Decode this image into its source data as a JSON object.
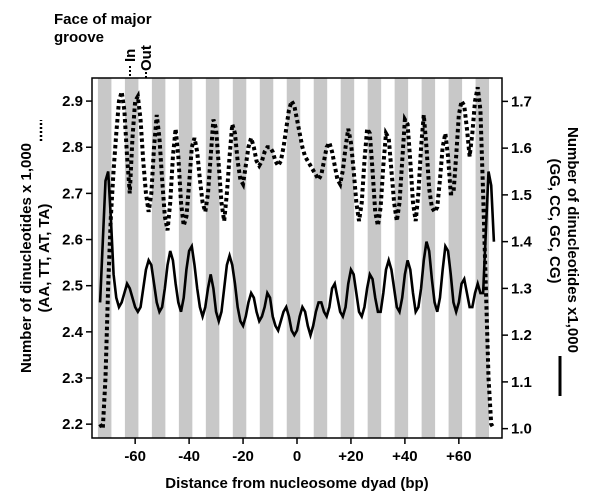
{
  "chart_data": {
    "type": "line",
    "title": "",
    "xlabel": "Distance from nucleosome dyad (bp)",
    "ylabel_left": [
      "Number of dinucleotides x 1,000",
      "(AA, TT, AT, TA)"
    ],
    "ylabel_right": [
      "Number of dinucleotides x1,000",
      "(GG, CC, GC, CG)"
    ],
    "xlim": [
      -76,
      76
    ],
    "ylim_left": [
      2.17,
      2.95
    ],
    "ylim_right": [
      0.98,
      1.75
    ],
    "x_ticks": [
      -60,
      -40,
      -20,
      0,
      20,
      40,
      60
    ],
    "x_tick_labels": [
      "-60",
      "-40",
      "-20",
      "0",
      "+20",
      "+40",
      "+60"
    ],
    "y_left_ticks": [
      2.2,
      2.3,
      2.4,
      2.5,
      2.6,
      2.7,
      2.8,
      2.9
    ],
    "y_left_tick_labels": [
      "2.2",
      "2.3",
      "2.4",
      "2.5",
      "2.6",
      "2.7",
      "2.8",
      "2.9"
    ],
    "y_right_ticks": [
      1.0,
      1.1,
      1.2,
      1.3,
      1.4,
      1.5,
      1.6,
      1.7
    ],
    "y_right_tick_labels": [
      "1.0",
      "1.1",
      "1.2",
      "1.3",
      "1.4",
      "1.5",
      "1.6",
      "1.7"
    ],
    "groove_annotation": {
      "title_lines": [
        "Face of major",
        "groove"
      ],
      "in_label": "In",
      "out_label": "Out"
    },
    "groove_bands": {
      "period_bp": 10.0,
      "band_width_bp": 5.0,
      "first_band_start": -73.8,
      "color": "#c8c8c8"
    },
    "series": [
      {
        "axis": "left",
        "style": "dotted",
        "color": "#000000",
        "x": [
          -73,
          -72,
          -71,
          -70,
          -69,
          -68,
          -67,
          -66,
          -65,
          -64,
          -63,
          -62,
          -61,
          -60,
          -59,
          -58,
          -57,
          -56,
          -55,
          -54,
          -53,
          -52,
          -51,
          -50,
          -49,
          -48,
          -47,
          -46,
          -45,
          -44,
          -43,
          -42,
          -41,
          -40,
          -39,
          -38,
          -37,
          -36,
          -35,
          -34,
          -33,
          -32,
          -31,
          -30,
          -29,
          -28,
          -27,
          -26,
          -25,
          -24,
          -23,
          -22,
          -21,
          -20,
          -19,
          -18,
          -17,
          -16,
          -15,
          -14,
          -13,
          -12,
          -11,
          -10,
          -9,
          -8,
          -7,
          -6,
          -5,
          -4,
          -3,
          -2,
          -1,
          0,
          1,
          2,
          3,
          4,
          5,
          6,
          7,
          8,
          9,
          10,
          11,
          12,
          13,
          14,
          15,
          16,
          17,
          18,
          19,
          20,
          21,
          22,
          23,
          24,
          25,
          26,
          27,
          28,
          29,
          30,
          31,
          32,
          33,
          34,
          35,
          36,
          37,
          38,
          39,
          40,
          41,
          42,
          43,
          44,
          45,
          46,
          47,
          48,
          49,
          50,
          51,
          52,
          53,
          54,
          55,
          56,
          57,
          58,
          59,
          60,
          61,
          62,
          63,
          64,
          65,
          66,
          67,
          68,
          69,
          70,
          71,
          72,
          73
        ],
        "y": [
          2.2,
          2.19,
          2.3,
          2.5,
          2.65,
          2.75,
          2.83,
          2.9,
          2.92,
          2.88,
          2.78,
          2.7,
          2.82,
          2.9,
          2.91,
          2.86,
          2.77,
          2.7,
          2.66,
          2.7,
          2.8,
          2.87,
          2.82,
          2.73,
          2.65,
          2.62,
          2.68,
          2.78,
          2.84,
          2.78,
          2.68,
          2.63,
          2.65,
          2.72,
          2.8,
          2.82,
          2.79,
          2.73,
          2.68,
          2.66,
          2.7,
          2.78,
          2.86,
          2.84,
          2.76,
          2.68,
          2.64,
          2.7,
          2.78,
          2.85,
          2.83,
          2.77,
          2.73,
          2.72,
          2.76,
          2.8,
          2.82,
          2.8,
          2.77,
          2.76,
          2.77,
          2.79,
          2.8,
          2.8,
          2.79,
          2.77,
          2.76,
          2.77,
          2.8,
          2.84,
          2.88,
          2.9,
          2.89,
          2.86,
          2.83,
          2.8,
          2.78,
          2.77,
          2.76,
          2.75,
          2.74,
          2.73,
          2.74,
          2.77,
          2.8,
          2.81,
          2.79,
          2.76,
          2.73,
          2.72,
          2.75,
          2.8,
          2.84,
          2.81,
          2.75,
          2.68,
          2.64,
          2.68,
          2.77,
          2.84,
          2.83,
          2.75,
          2.66,
          2.63,
          2.67,
          2.76,
          2.83,
          2.82,
          2.75,
          2.68,
          2.64,
          2.68,
          2.77,
          2.86,
          2.85,
          2.77,
          2.68,
          2.64,
          2.7,
          2.8,
          2.87,
          2.8,
          2.71,
          2.67,
          2.66,
          2.67,
          2.73,
          2.8,
          2.83,
          2.78,
          2.7,
          2.7,
          2.78,
          2.87,
          2.9,
          2.89,
          2.84,
          2.78,
          2.83,
          2.9,
          2.93,
          2.88,
          2.7,
          2.5,
          2.3,
          2.2,
          2.19
        ]
      },
      {
        "axis": "right",
        "style": "solid",
        "color": "#000000",
        "x": [
          -73,
          -72,
          -71,
          -70,
          -69,
          -68,
          -67,
          -66,
          -65,
          -64,
          -63,
          -62,
          -61,
          -60,
          -59,
          -58,
          -57,
          -56,
          -55,
          -54,
          -53,
          -52,
          -51,
          -50,
          -49,
          -48,
          -47,
          -46,
          -45,
          -44,
          -43,
          -42,
          -41,
          -40,
          -39,
          -38,
          -37,
          -36,
          -35,
          -34,
          -33,
          -32,
          -31,
          -30,
          -29,
          -28,
          -27,
          -26,
          -25,
          -24,
          -23,
          -22,
          -21,
          -20,
          -19,
          -18,
          -17,
          -16,
          -15,
          -14,
          -13,
          -12,
          -11,
          -10,
          -9,
          -8,
          -7,
          -6,
          -5,
          -4,
          -3,
          -2,
          -1,
          0,
          1,
          2,
          3,
          4,
          5,
          6,
          7,
          8,
          9,
          10,
          11,
          12,
          13,
          14,
          15,
          16,
          17,
          18,
          19,
          20,
          21,
          22,
          23,
          24,
          25,
          26,
          27,
          28,
          29,
          30,
          31,
          32,
          33,
          34,
          35,
          36,
          37,
          38,
          39,
          40,
          41,
          42,
          43,
          44,
          45,
          46,
          47,
          48,
          49,
          50,
          51,
          52,
          53,
          54,
          55,
          56,
          57,
          58,
          59,
          60,
          61,
          62,
          63,
          64,
          65,
          66,
          67,
          68,
          69,
          70,
          71,
          72,
          73
        ],
        "y": [
          1.27,
          1.4,
          1.53,
          1.55,
          1.45,
          1.33,
          1.28,
          1.26,
          1.27,
          1.29,
          1.31,
          1.3,
          1.28,
          1.26,
          1.25,
          1.26,
          1.3,
          1.34,
          1.36,
          1.35,
          1.31,
          1.27,
          1.25,
          1.26,
          1.3,
          1.35,
          1.38,
          1.36,
          1.31,
          1.27,
          1.25,
          1.28,
          1.34,
          1.38,
          1.39,
          1.35,
          1.3,
          1.26,
          1.24,
          1.26,
          1.3,
          1.33,
          1.3,
          1.25,
          1.23,
          1.25,
          1.3,
          1.35,
          1.37,
          1.35,
          1.31,
          1.26,
          1.23,
          1.22,
          1.24,
          1.27,
          1.29,
          1.28,
          1.25,
          1.23,
          1.24,
          1.26,
          1.29,
          1.28,
          1.24,
          1.22,
          1.21,
          1.23,
          1.25,
          1.26,
          1.24,
          1.21,
          1.2,
          1.21,
          1.24,
          1.26,
          1.25,
          1.22,
          1.2,
          1.22,
          1.25,
          1.27,
          1.27,
          1.25,
          1.24,
          1.26,
          1.3,
          1.31,
          1.28,
          1.25,
          1.24,
          1.26,
          1.31,
          1.34,
          1.33,
          1.29,
          1.25,
          1.24,
          1.26,
          1.3,
          1.33,
          1.32,
          1.28,
          1.25,
          1.25,
          1.29,
          1.34,
          1.36,
          1.34,
          1.3,
          1.26,
          1.25,
          1.28,
          1.33,
          1.36,
          1.34,
          1.29,
          1.25,
          1.26,
          1.3,
          1.36,
          1.4,
          1.38,
          1.32,
          1.27,
          1.25,
          1.28,
          1.34,
          1.39,
          1.38,
          1.33,
          1.27,
          1.25,
          1.27,
          1.31,
          1.32,
          1.29,
          1.26,
          1.26,
          1.29,
          1.31,
          1.29,
          1.29,
          1.42,
          1.55,
          1.52,
          1.4
        ]
      }
    ]
  }
}
